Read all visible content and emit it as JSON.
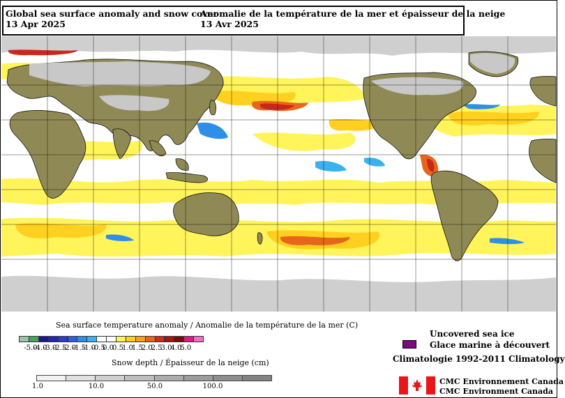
{
  "title": {
    "en_line1": "Global sea surface anomaly and snow cover",
    "en_line2": "13 Apr 2025",
    "fr_line1": "Anomalie de la température de la mer et épaisseur de la neige",
    "fr_line2": "13 Avr 2025"
  },
  "sst_legend": {
    "title": "Sea surface temperature anomaly / Anomalie de la température de la mer (C)",
    "ticks": [
      "-5.0",
      "-4.0",
      "-3.0",
      "-2.5",
      "-2.0",
      "-1.5",
      "-1.0",
      "-0.5",
      "0.0",
      "0.5",
      "1.0",
      "1.5",
      "2.0",
      "2.5",
      "3.0",
      "4.0",
      "5.0"
    ],
    "colors": [
      "#9cc4a8",
      "#45a65a",
      "#1a1a8c",
      "#2424b8",
      "#2e3ad0",
      "#2d5fe0",
      "#2f8ee8",
      "#39b2ee",
      "#ffffff",
      "#ffffff",
      "#fff45a",
      "#ffd020",
      "#f5a020",
      "#e8661c",
      "#d42a1a",
      "#a8140e",
      "#7a0808",
      "#d81a8a",
      "#f070c0"
    ]
  },
  "snow_legend": {
    "title": "Snow depth / Épaisseur de la neige (cm)",
    "ticks": [
      "1.0",
      "10.0",
      "50.0",
      "100.0"
    ],
    "colors": [
      "#f2f2f2",
      "#e0e0e0",
      "#d0d0d0",
      "#bebebe",
      "#acacac",
      "#9c9c9c",
      "#8e8e8e",
      "#828282"
    ]
  },
  "ice": {
    "label_en": "Uncovered sea ice",
    "label_fr": "Glace marine à découvert",
    "climatology": "Climatologie 1992-2011 Climatology",
    "color": "#7b0a7f"
  },
  "credit": {
    "line1": "CMC Environnement Canada",
    "line2": "CMC Environment Canada"
  },
  "map_colors": {
    "land": "#8f8a55",
    "snow": "#c8c8c8",
    "ocean": "#ffffff",
    "warm_light": "#fff45a",
    "warm_mid": "#ffd020",
    "warm_hot": "#e8661c",
    "warm_very": "#c8281a",
    "cold": "#2f8ee8",
    "cold_light": "#39b2ee"
  }
}
